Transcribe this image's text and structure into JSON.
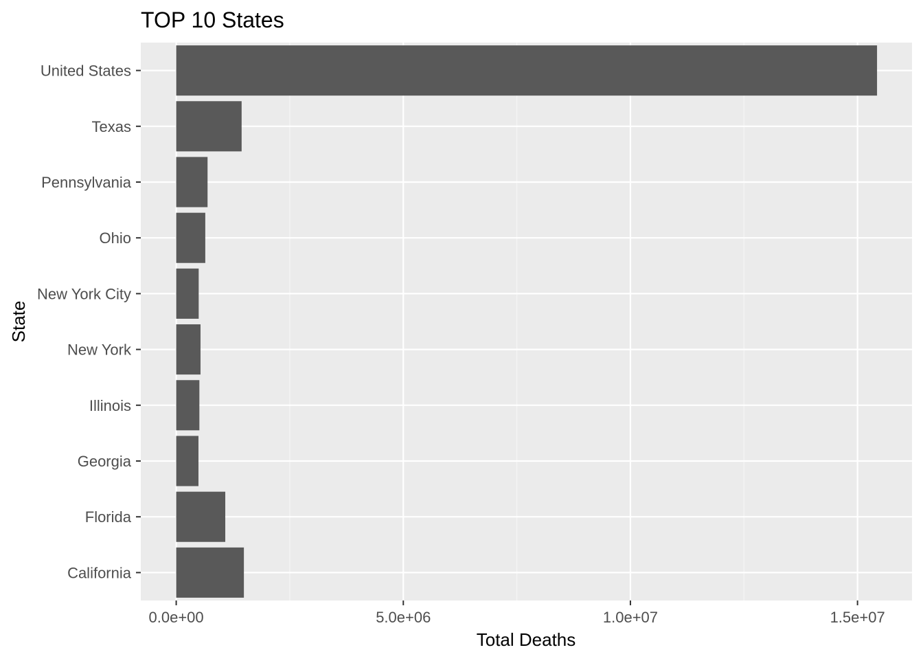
{
  "chart_data": {
    "type": "bar",
    "orientation": "horizontal",
    "title": "TOP 10 States",
    "xlabel": "Total Deaths",
    "ylabel": "State",
    "categories": [
      "California",
      "Florida",
      "Georgia",
      "Illinois",
      "New York",
      "New York City",
      "Ohio",
      "Pennsylvania",
      "Texas",
      "United States"
    ],
    "values": [
      1490000,
      1080000,
      490000,
      510000,
      535000,
      495000,
      640000,
      690000,
      1440000,
      15430000
    ],
    "xlim": [
      -780000,
      16200000
    ],
    "xticks": [
      0,
      5000000,
      10000000,
      15000000
    ],
    "xtick_labels": [
      "0.0e+00",
      "5.0e+06",
      "1.0e+07",
      "1.5e+07"
    ],
    "grid": true,
    "legend": "none",
    "colors": {
      "bar": "#595959",
      "panel": "#ebebeb",
      "grid_major": "#ffffff",
      "grid_minor": "#f5f5f5"
    }
  }
}
